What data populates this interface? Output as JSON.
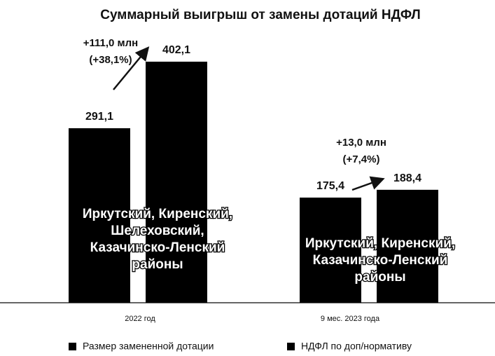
{
  "chart_data": {
    "type": "bar",
    "title": "Суммарный выигрыш от замены дотаций НДФЛ",
    "categories": [
      "2022 год",
      "9 мес. 2023 года"
    ],
    "series": [
      {
        "name": "Размер замененной дотации",
        "color": "#000000",
        "values": [
          291.1,
          175.4
        ],
        "value_labels": [
          "291,1",
          "175,4"
        ]
      },
      {
        "name": "НДФЛ по доп/нормативу",
        "color": "#000000",
        "values": [
          402.1,
          188.4
        ],
        "value_labels": [
          "402,1",
          "188,4"
        ]
      }
    ],
    "annotations": [
      {
        "lines": [
          "+111,0 млн",
          "(+38,1%)"
        ]
      },
      {
        "lines": [
          "+13,0 млн",
          "(+7,4%)"
        ]
      }
    ],
    "group_labels": [
      {
        "lines": [
          "Иркутский, Киренский,",
          "Шелеховский,",
          "Казачинско-Ленский",
          "районы"
        ]
      },
      {
        "lines": [
          "Иркутский, Киренский,",
          "Казачинско-Ленский",
          "районы"
        ]
      }
    ],
    "legend": "bottom"
  }
}
